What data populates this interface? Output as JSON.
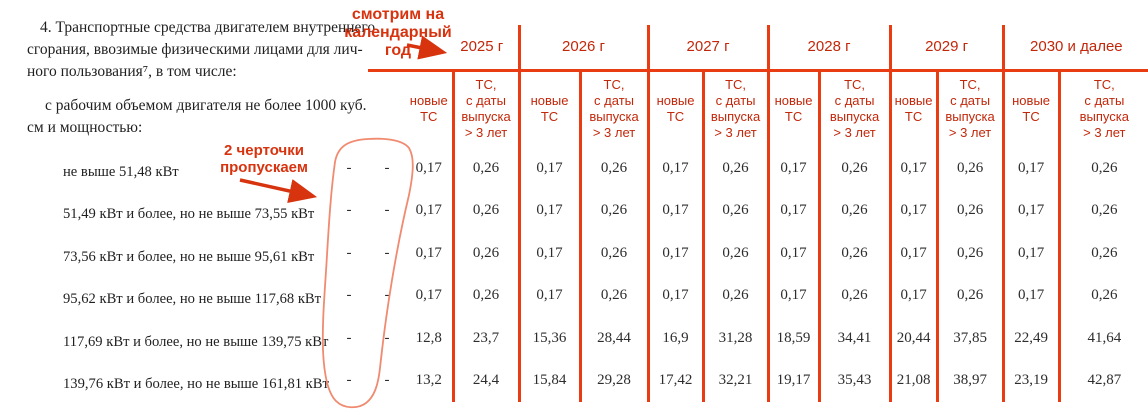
{
  "intro": {
    "paragraph1_lines": [
      "4. Транспортные средства двигателем внутреннего",
      "сгорания, ввозимые физическими лицами для лич-",
      "ного пользования⁷, в том числе:"
    ],
    "paragraph2_lines": [
      "с рабочим объемом двигателя не более 1000 куб.",
      "см  и мощностью:"
    ]
  },
  "annotations": {
    "calendar_note": "смотрим на\nкалендарный\nгод",
    "dash_note": "2 черточки\nпропускаем"
  },
  "colors": {
    "grid_line": "#e93c12",
    "header_text": "#c3270a",
    "annotation_text": "#d8330f",
    "circle_stroke": "#f08a70",
    "body_text": "#1f1f1f"
  },
  "table": {
    "years": [
      "2025 г",
      "2026 г",
      "2027 г",
      "2028 г",
      "2029 г",
      "2030 и далее"
    ],
    "subcolumns": [
      "новые\nТС",
      "ТС,\nс даты\nвыпуска\n> 3 лет"
    ],
    "rows": [
      {
        "label": "не выше 51,48 кВт",
        "skipped": [
          "-",
          "-"
        ],
        "values": [
          "0,17",
          "0,26",
          "0,17",
          "0,26",
          "0,17",
          "0,26",
          "0,17",
          "0,26",
          "0,17",
          "0,26",
          "0,17",
          "0,26"
        ]
      },
      {
        "label": "51,49 кВт и более, но не выше 73,55 кВт",
        "skipped": [
          "-",
          "-"
        ],
        "values": [
          "0,17",
          "0,26",
          "0,17",
          "0,26",
          "0,17",
          "0,26",
          "0,17",
          "0,26",
          "0,17",
          "0,26",
          "0,17",
          "0,26"
        ]
      },
      {
        "label": "73,56 кВт и более, но не выше 95,61 кВт",
        "skipped": [
          "-",
          "-"
        ],
        "values": [
          "0,17",
          "0,26",
          "0,17",
          "0,26",
          "0,17",
          "0,26",
          "0,17",
          "0,26",
          "0,17",
          "0,26",
          "0,17",
          "0,26"
        ]
      },
      {
        "label": "95,62 кВт и более, но не выше 117,68 кВт",
        "skipped": [
          "-",
          "-"
        ],
        "values": [
          "0,17",
          "0,26",
          "0,17",
          "0,26",
          "0,17",
          "0,26",
          "0,17",
          "0,26",
          "0,17",
          "0,26",
          "0,17",
          "0,26"
        ]
      },
      {
        "label": "117,69 кВт и более, но не выше 139,75 кВт",
        "skipped": [
          "-",
          "-"
        ],
        "values": [
          "12,8",
          "23,7",
          "15,36",
          "28,44",
          "16,9",
          "31,28",
          "18,59",
          "34,41",
          "20,44",
          "37,85",
          "22,49",
          "41,64"
        ]
      },
      {
        "label": "139,76 кВт и более, но не выше 161,81 кВт",
        "skipped": [
          "-",
          "-"
        ],
        "values": [
          "13,2",
          "24,4",
          "15,84",
          "29,28",
          "17,42",
          "32,21",
          "19,17",
          "35,43",
          "21,08",
          "38,97",
          "23,19",
          "42,87"
        ]
      }
    ]
  }
}
